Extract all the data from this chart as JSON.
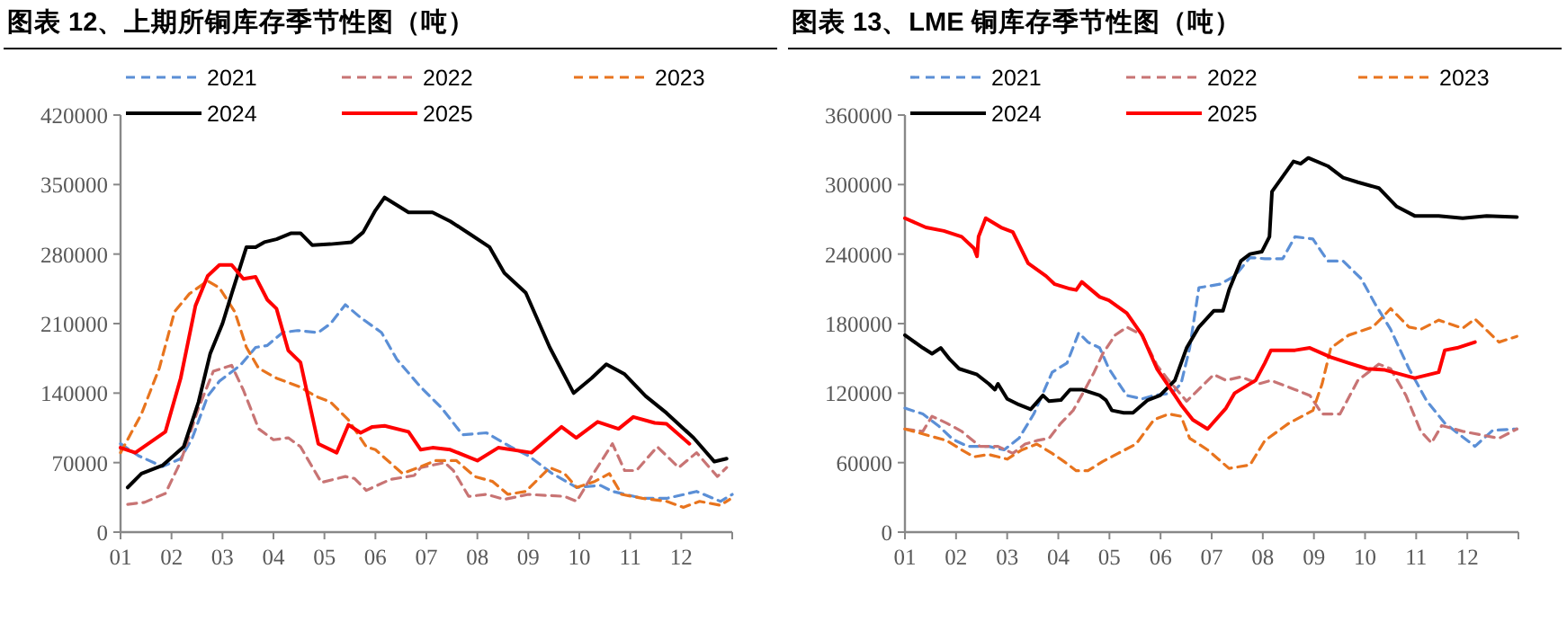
{
  "chart_data": [
    {
      "type": "line",
      "title": "图表 12、上期所铜库存季节性图（吨）",
      "legend": "top",
      "xlim": [
        1,
        13
      ],
      "xticks": [
        {
          "value": 1,
          "label": "01"
        },
        {
          "value": 2,
          "label": "02"
        },
        {
          "value": 3,
          "label": "03"
        },
        {
          "value": 4,
          "label": "04"
        },
        {
          "value": 5,
          "label": "05"
        },
        {
          "value": 6,
          "label": "06"
        },
        {
          "value": 7,
          "label": "07"
        },
        {
          "value": 8,
          "label": "08"
        },
        {
          "value": 9,
          "label": "09"
        },
        {
          "value": 10,
          "label": "10"
        },
        {
          "value": 11,
          "label": "11"
        },
        {
          "value": 12,
          "label": "12"
        },
        {
          "value": 13,
          "label": null
        }
      ],
      "ylim": [
        0,
        420000
      ],
      "yticks": [
        0,
        70000,
        140000,
        210000,
        280000,
        350000,
        420000
      ],
      "series": [
        {
          "name": "2021",
          "color": "#5b8fd6",
          "line_style": "dashed",
          "x": [
            1,
            1.35,
            1.82,
            2.18,
            2.41,
            2.71,
            2.94,
            3.35,
            3.65,
            3.88,
            4.18,
            4.47,
            4.88,
            5.12,
            5.41,
            5.71,
            6.12,
            6.42,
            6.89,
            7.3,
            7.71,
            8.18,
            8.65,
            9.0,
            9.47,
            9.95,
            10.42,
            10.65,
            11.24,
            11.71,
            12.06,
            12.3,
            12.77,
            13.0
          ],
          "values": [
            89000,
            77000,
            66000,
            74000,
            95000,
            137000,
            152000,
            168000,
            186000,
            188000,
            201000,
            203000,
            201000,
            210000,
            229000,
            216000,
            201000,
            174000,
            146000,
            125000,
            98000,
            100000,
            86000,
            77000,
            59000,
            45000,
            47000,
            41000,
            34000,
            34000,
            38000,
            41000,
            31000,
            38000
          ]
        },
        {
          "name": "2022",
          "color": "#c87474",
          "line_style": "dashed",
          "x": [
            1.14,
            1.47,
            1.88,
            2.18,
            2.53,
            2.82,
            3.18,
            3.41,
            3.71,
            4.0,
            4.29,
            4.53,
            4.94,
            5.41,
            5.59,
            5.82,
            6.29,
            6.76,
            6.89,
            7.36,
            7.53,
            7.83,
            8.18,
            8.53,
            9.0,
            9.71,
            9.95,
            10.24,
            10.65,
            10.89,
            11.12,
            11.53,
            11.95,
            12.3,
            12.71,
            12.89
          ],
          "values": [
            28000,
            30000,
            39000,
            71000,
            125000,
            162000,
            168000,
            143000,
            104000,
            93000,
            95000,
            86000,
            50000,
            56000,
            54000,
            42000,
            53000,
            57000,
            65000,
            70000,
            62000,
            36000,
            38000,
            33000,
            38000,
            36000,
            31000,
            56000,
            89000,
            62000,
            62000,
            86000,
            65000,
            80000,
            56000,
            65000
          ]
        },
        {
          "name": "2023",
          "color": "#e8741e",
          "line_style": "dashed",
          "x": [
            1,
            1.41,
            1.76,
            2.06,
            2.35,
            2.71,
            2.94,
            3.24,
            3.47,
            3.71,
            4.06,
            4.53,
            4.82,
            5.12,
            5.47,
            5.82,
            6.0,
            6.53,
            6.89,
            7.18,
            7.59,
            7.95,
            8.3,
            8.6,
            8.95,
            9.42,
            9.71,
            9.95,
            10.3,
            10.59,
            10.83,
            11.24,
            11.71,
            12.04,
            12.36,
            12.77,
            12.95
          ],
          "values": [
            80000,
            119000,
            165000,
            222000,
            240000,
            253000,
            246000,
            222000,
            186000,
            165000,
            155000,
            146000,
            137000,
            131000,
            113000,
            86000,
            83000,
            59000,
            66000,
            72000,
            72000,
            56000,
            51000,
            38000,
            41000,
            65000,
            59000,
            45000,
            51000,
            59000,
            38000,
            34000,
            31000,
            25000,
            31000,
            27000,
            33000
          ]
        },
        {
          "name": "2024",
          "color": "#000000",
          "line_style": "solid",
          "x": [
            1.14,
            1.41,
            1.82,
            2.24,
            2.53,
            2.76,
            3.0,
            3.18,
            3.47,
            3.65,
            3.82,
            4.06,
            4.35,
            4.53,
            4.76,
            5.12,
            5.53,
            5.76,
            6.0,
            6.18,
            6.65,
            7.12,
            7.47,
            7.83,
            8.24,
            8.53,
            8.95,
            9.42,
            9.89,
            10.24,
            10.53,
            10.89,
            11.3,
            11.71,
            12.24,
            12.65,
            12.89
          ],
          "values": [
            45000,
            59000,
            67000,
            86000,
            131000,
            180000,
            210000,
            240000,
            287000,
            287000,
            292000,
            295000,
            301000,
            301000,
            289000,
            290000,
            292000,
            302000,
            324000,
            337000,
            322000,
            322000,
            313000,
            301000,
            287000,
            261000,
            241000,
            186000,
            140000,
            155000,
            169000,
            159000,
            137000,
            120000,
            95000,
            71000,
            74000
          ]
        },
        {
          "name": "2025",
          "color": "#ff0000",
          "line_style": "solid",
          "x": [
            1.0,
            1.29,
            1.88,
            2.18,
            2.47,
            2.71,
            2.94,
            3.18,
            3.41,
            3.65,
            3.88,
            4.06,
            4.29,
            4.53,
            4.88,
            5.24,
            5.47,
            5.71,
            5.94,
            6.18,
            6.65,
            6.89,
            7.12,
            7.47,
            8.0,
            8.41,
            9.06,
            9.65,
            9.94,
            10.36,
            10.77,
            11.06,
            11.48,
            11.71,
            12.16
          ],
          "values": [
            85000,
            80000,
            101000,
            155000,
            228000,
            258000,
            269000,
            269000,
            255000,
            257000,
            234000,
            225000,
            183000,
            171000,
            89000,
            80000,
            108000,
            100000,
            106000,
            107000,
            101000,
            83000,
            85000,
            83000,
            72000,
            85000,
            80000,
            106000,
            95000,
            111000,
            104000,
            116000,
            110000,
            109000,
            89000
          ]
        }
      ]
    },
    {
      "type": "line",
      "title": "图表 13、LME 铜库存季节性图（吨）",
      "legend": "top",
      "xlim": [
        1,
        13
      ],
      "xticks": [
        {
          "value": 1,
          "label": "01"
        },
        {
          "value": 2,
          "label": "02"
        },
        {
          "value": 3,
          "label": "03"
        },
        {
          "value": 4,
          "label": "04"
        },
        {
          "value": 5,
          "label": "05"
        },
        {
          "value": 6,
          "label": "06"
        },
        {
          "value": 7,
          "label": "07"
        },
        {
          "value": 8,
          "label": "08"
        },
        {
          "value": 9,
          "label": "09"
        },
        {
          "value": 10,
          "label": "10"
        },
        {
          "value": 11,
          "label": "11"
        },
        {
          "value": 12,
          "label": "12"
        },
        {
          "value": 13,
          "label": null
        }
      ],
      "ylim": [
        0,
        360000
      ],
      "yticks": [
        0,
        60000,
        120000,
        180000,
        240000,
        300000,
        360000
      ],
      "series": [
        {
          "name": "2021",
          "color": "#5b8fd6",
          "line_style": "dashed",
          "x": [
            1,
            1.35,
            1.65,
            1.94,
            2.23,
            2.64,
            2.94,
            3.23,
            3.52,
            3.88,
            4.17,
            4.4,
            4.58,
            4.81,
            4.99,
            5.34,
            5.64,
            5.87,
            6.22,
            6.4,
            6.57,
            6.75,
            7.16,
            7.45,
            7.75,
            8.04,
            8.39,
            8.63,
            8.98,
            9.27,
            9.57,
            9.92,
            10.21,
            10.5,
            10.86,
            11.21,
            11.56,
            12.15,
            12.5,
            12.97
          ],
          "values": [
            107000,
            102000,
            92000,
            80000,
            74000,
            74000,
            71000,
            81000,
            102000,
            138000,
            146000,
            172000,
            164000,
            159000,
            141000,
            118000,
            115000,
            118000,
            120000,
            128000,
            159000,
            211000,
            214000,
            221000,
            237000,
            236000,
            236000,
            255000,
            253000,
            234000,
            234000,
            219000,
            196000,
            175000,
            141000,
            113000,
            94000,
            74000,
            88000,
            89000
          ]
        },
        {
          "name": "2022",
          "color": "#c87474",
          "line_style": "dashed",
          "x": [
            1,
            1.35,
            1.53,
            1.82,
            2.11,
            2.47,
            2.82,
            3.11,
            3.35,
            3.58,
            3.82,
            4.05,
            4.29,
            4.52,
            4.7,
            4.87,
            5.11,
            5.34,
            5.64,
            5.93,
            6.16,
            6.51,
            7.04,
            7.28,
            7.57,
            7.92,
            8.16,
            8.63,
            8.92,
            9.16,
            9.51,
            9.86,
            10.27,
            10.5,
            10.8,
            11.09,
            11.3,
            11.5,
            11.91,
            12.26,
            12.62,
            12.97
          ],
          "values": [
            89000,
            87000,
            100000,
            94000,
            87000,
            74000,
            74000,
            68000,
            76000,
            79000,
            81000,
            94000,
            105000,
            123000,
            138000,
            154000,
            170000,
            177000,
            170000,
            144000,
            131000,
            113000,
            136000,
            131000,
            134000,
            128000,
            131000,
            123000,
            118000,
            102000,
            102000,
            131000,
            145000,
            141000,
            118000,
            87000,
            77000,
            92000,
            87000,
            84000,
            81000,
            89000
          ]
        },
        {
          "name": "2023",
          "color": "#e8741e",
          "line_style": "dashed",
          "x": [
            1,
            1.41,
            1.82,
            2.11,
            2.35,
            2.64,
            3.0,
            3.29,
            3.58,
            3.88,
            4.11,
            4.35,
            4.58,
            4.87,
            5.17,
            5.52,
            5.87,
            6.16,
            6.4,
            6.57,
            6.92,
            7.34,
            7.75,
            8.04,
            8.51,
            8.98,
            9.16,
            9.33,
            9.68,
            10.15,
            10.33,
            10.5,
            10.86,
            11.09,
            11.44,
            11.91,
            12.15,
            12.62,
            12.97
          ],
          "values": [
            89000,
            84000,
            79000,
            71000,
            65000,
            67000,
            63000,
            71000,
            76000,
            68000,
            61000,
            53000,
            53000,
            61000,
            68000,
            76000,
            97000,
            102000,
            100000,
            81000,
            71000,
            55000,
            58000,
            79000,
            94000,
            105000,
            128000,
            159000,
            170000,
            177000,
            185000,
            193000,
            177000,
            175000,
            183000,
            176000,
            184000,
            164000,
            169000
          ]
        },
        {
          "name": "2024",
          "color": "#000000",
          "line_style": "solid",
          "x": [
            1,
            1.35,
            1.53,
            1.7,
            1.88,
            2.06,
            2.41,
            2.64,
            2.76,
            2.82,
            3.0,
            3.23,
            3.46,
            3.7,
            3.82,
            4.05,
            4.23,
            4.46,
            4.81,
            4.93,
            5.05,
            5.28,
            5.46,
            5.75,
            5.99,
            6.28,
            6.51,
            6.75,
            7.04,
            7.22,
            7.34,
            7.57,
            7.75,
            7.98,
            8.13,
            8.18,
            8.39,
            8.6,
            8.74,
            8.89,
            9.27,
            9.57,
            9.86,
            10.27,
            10.62,
            10.97,
            11.44,
            11.91,
            12.38,
            12.97
          ],
          "values": [
            170000,
            159000,
            154000,
            159000,
            149000,
            141000,
            136000,
            128000,
            123000,
            128000,
            115000,
            110000,
            106000,
            118000,
            113000,
            114000,
            123000,
            123000,
            118000,
            114000,
            105000,
            103000,
            103000,
            114000,
            118000,
            131000,
            159000,
            177000,
            191000,
            191000,
            209000,
            234000,
            240000,
            242000,
            255000,
            294000,
            307000,
            320000,
            318000,
            323000,
            316000,
            306000,
            302000,
            297000,
            281000,
            273000,
            273000,
            271000,
            273000,
            272000
          ]
        },
        {
          "name": "2025",
          "color": "#ff0000",
          "line_style": "solid",
          "x": [
            1,
            1.41,
            1.76,
            2.11,
            2.35,
            2.41,
            2.44,
            2.58,
            2.88,
            3.11,
            3.41,
            3.76,
            3.93,
            4.23,
            4.35,
            4.46,
            4.81,
            4.99,
            5.34,
            5.64,
            5.93,
            6.16,
            6.4,
            6.63,
            6.92,
            7.28,
            7.45,
            7.86,
            8.04,
            8.16,
            8.63,
            8.92,
            9.33,
            9.68,
            10.04,
            10.39,
            10.97,
            11.44,
            11.56,
            11.8,
            12.15
          ],
          "values": [
            271000,
            263000,
            260000,
            255000,
            245000,
            238000,
            255000,
            271000,
            263000,
            259000,
            232000,
            221000,
            214000,
            210000,
            209000,
            216000,
            203000,
            200000,
            189000,
            170000,
            141000,
            126000,
            110000,
            97000,
            89000,
            107000,
            120000,
            131000,
            146000,
            157000,
            157000,
            159000,
            151000,
            146000,
            141000,
            140000,
            133000,
            138000,
            157000,
            159000,
            164000
          ]
        }
      ]
    }
  ]
}
